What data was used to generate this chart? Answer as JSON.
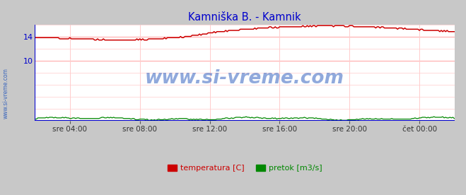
{
  "title": "Kamniška B. - Kamnik",
  "title_color": "#0000cc",
  "bg_color": "#c8c8c8",
  "plot_bg_color": "#ffffff",
  "grid_h_color": "#ffaaaa",
  "grid_v_color": "#ffcccc",
  "xaxis_color": "#0000cc",
  "yaxis_color": "#0000cc",
  "watermark": "www.si-vreme.com",
  "watermark_color": "#2255bb",
  "xlim": [
    0,
    288
  ],
  "ylim": [
    0,
    16
  ],
  "xtick_positions": [
    24,
    72,
    120,
    168,
    216,
    264
  ],
  "xtick_labels": [
    "sre 04:00",
    "sre 08:00",
    "sre 12:00",
    "sre 16:00",
    "sre 20:00",
    "čet 00:00"
  ],
  "ytick_positions": [
    10,
    14
  ],
  "ytick_labels": [
    "10",
    "14"
  ],
  "temp_color": "#cc0000",
  "flow_color": "#008800",
  "level_color": "#0000cc",
  "legend_temp": "temperatura [C]",
  "legend_flow": "pretok [m3/s]",
  "arrow_color": "#cc0000"
}
